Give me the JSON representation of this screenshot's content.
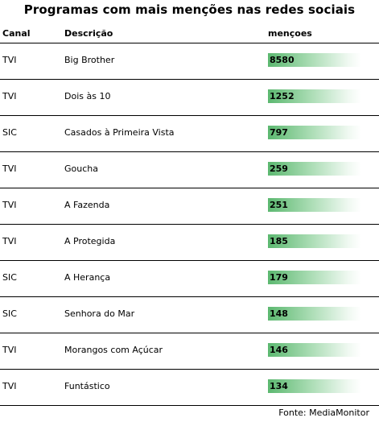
{
  "title": "Programas com mais menções nas redes sociais",
  "headers": {
    "canal": "Canal",
    "descricao": "Descrição",
    "mencoes": "mençoes"
  },
  "source": "Fonte:  MediaMonitor",
  "bar_color": "#5cb870",
  "chart_data": {
    "type": "table",
    "columns": [
      "Canal",
      "Descrição",
      "mençoes"
    ],
    "rows": [
      {
        "canal": "TVI",
        "programa": "Big Brother",
        "mencoes": 8580
      },
      {
        "canal": "TVI",
        "programa": "Dois às 10",
        "mencoes": 1252
      },
      {
        "canal": "SIC",
        "programa": "Casados à Primeira Vista",
        "mencoes": 797
      },
      {
        "canal": "TVI",
        "programa": "Goucha",
        "mencoes": 259
      },
      {
        "canal": "TVI",
        "programa": "A Fazenda",
        "mencoes": 251
      },
      {
        "canal": "TVI",
        "programa": "A Protegida",
        "mencoes": 185
      },
      {
        "canal": "SIC",
        "programa": "A Herança",
        "mencoes": 179
      },
      {
        "canal": "SIC",
        "programa": "Senhora do Mar",
        "mencoes": 148
      },
      {
        "canal": "TVI",
        "programa": "Morangos com Açúcar",
        "mencoes": 146
      },
      {
        "canal": "TVI",
        "programa": "Funtástico",
        "mencoes": 134
      }
    ]
  }
}
